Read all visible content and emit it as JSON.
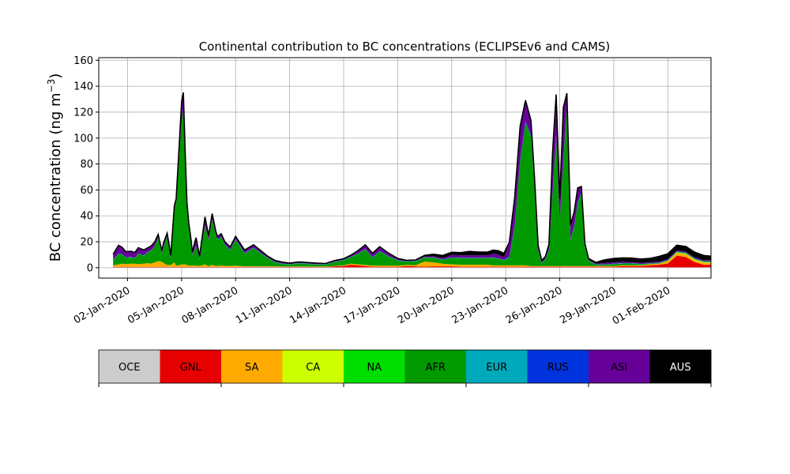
{
  "chart_data": {
    "type": "area",
    "title": "Continental contribution to BC concentrations (ECLIPSEv6 and CAMS)",
    "ylabel": "BC concentration (ng m",
    "ylabel_sup": "−3",
    "ylabel_close": ")",
    "xlabel": "",
    "ylim": [
      -8,
      162
    ],
    "xlim": [
      -1.6,
      32.4
    ],
    "grid": true,
    "stacked": true,
    "y_ticks": [
      0,
      20,
      40,
      60,
      80,
      100,
      120,
      140,
      160
    ],
    "x_ticks": [
      {
        "day": 0,
        "label": "02-Jan-2020"
      },
      {
        "day": 3,
        "label": "05-Jan-2020"
      },
      {
        "day": 6,
        "label": "08-Jan-2020"
      },
      {
        "day": 9,
        "label": "11-Jan-2020"
      },
      {
        "day": 12,
        "label": "14-Jan-2020"
      },
      {
        "day": 15,
        "label": "17-Jan-2020"
      },
      {
        "day": 18,
        "label": "20-Jan-2020"
      },
      {
        "day": 21,
        "label": "23-Jan-2020"
      },
      {
        "day": 24,
        "label": "26-Jan-2020"
      },
      {
        "day": 27,
        "label": "29-Jan-2020"
      },
      {
        "day": 30,
        "label": "01-Feb-2020"
      }
    ],
    "x_unit": "days after 02-Jan-2020",
    "x": [
      -0.8,
      -0.5,
      -0.3,
      -0.1,
      0.2,
      0.4,
      0.6,
      0.9,
      1.1,
      1.3,
      1.5,
      1.7,
      1.9,
      2.0,
      2.2,
      2.4,
      2.6,
      2.7,
      2.9,
      3.0,
      3.1,
      3.2,
      3.3,
      3.4,
      3.5,
      3.6,
      3.8,
      4.0,
      4.3,
      4.5,
      4.7,
      4.9,
      5.0,
      5.2,
      5.4,
      5.7,
      6.0,
      6.5,
      7.0,
      7.4,
      7.8,
      8.2,
      8.6,
      9.0,
      9.5,
      10.0,
      10.5,
      11.0,
      11.5,
      12.0,
      12.4,
      12.8,
      13.2,
      13.6,
      14.0,
      14.5,
      15.0,
      15.5,
      16.0,
      16.5,
      17.0,
      17.5,
      18.0,
      18.5,
      19.0,
      19.5,
      20.0,
      20.3,
      20.6,
      20.9,
      21.2,
      21.5,
      21.8,
      22.1,
      22.4,
      22.6,
      22.8,
      23.0,
      23.2,
      23.4,
      23.6,
      23.8,
      24.0,
      24.2,
      24.4,
      24.6,
      24.8,
      25.0,
      25.2,
      25.4,
      25.6,
      26.0,
      26.5,
      27.0,
      27.5,
      28.0,
      28.5,
      29.0,
      29.5,
      30.0,
      30.5,
      31.0,
      31.5,
      32.0,
      32.4
    ],
    "series": [
      {
        "name": "OCE",
        "color": "#cccccc",
        "values": [
          0.3,
          0.3,
          0.3,
          0.3,
          0.3,
          0.3,
          0.3,
          0.3,
          0.3,
          0.3,
          0.3,
          0.3,
          0.3,
          0.3,
          0.3,
          0.3,
          0.3,
          0.3,
          0.3,
          0.3,
          0.3,
          0.3,
          0.3,
          0.3,
          0.3,
          0.3,
          0.3,
          0.3,
          0.3,
          0.3,
          0.3,
          0.3,
          0.3,
          0.3,
          0.3,
          0.3,
          0.3,
          0.3,
          0.3,
          0.3,
          0.3,
          0.3,
          0.3,
          0.3,
          0.3,
          0.3,
          0.3,
          0.3,
          0.3,
          0.3,
          0.3,
          0.3,
          0.3,
          0.3,
          0.3,
          0.3,
          0.3,
          0.3,
          0.3,
          0.3,
          0.3,
          0.3,
          0.3,
          0.3,
          0.3,
          0.3,
          0.3,
          0.3,
          0.3,
          0.3,
          0.3,
          0.3,
          0.3,
          0.3,
          0.3,
          0.3,
          0.3,
          0.3,
          0.3,
          0.3,
          0.3,
          0.3,
          0.3,
          0.3,
          0.3,
          0.3,
          0.3,
          0.3,
          0.3,
          0.3,
          0.3,
          0.3,
          0.3,
          0.3,
          0.3,
          0.3,
          0.3,
          0.3,
          0.3,
          0.3,
          0.3,
          0.3,
          0.3,
          0.3,
          0.3
        ]
      },
      {
        "name": "GNL",
        "color": "#e60000",
        "values": [
          0.3,
          0.3,
          0.3,
          0.3,
          0.3,
          0.3,
          0.3,
          0.3,
          0.3,
          0.3,
          0.3,
          0.3,
          0.3,
          0.3,
          0.3,
          0.3,
          0.3,
          0.3,
          0.3,
          0.3,
          0.3,
          0.3,
          0.3,
          0.3,
          0.3,
          0.3,
          0.3,
          0.3,
          0.3,
          0.3,
          0.3,
          0.3,
          0.3,
          0.3,
          0.3,
          0.3,
          0.3,
          0.3,
          0.3,
          0.3,
          0.3,
          0.3,
          0.3,
          0.3,
          0.3,
          0.3,
          0.3,
          0.3,
          0.8,
          1.0,
          2.0,
          1.5,
          1.0,
          0.5,
          0.5,
          0.5,
          0.5,
          1.0,
          0.8,
          0.5,
          0.8,
          0.8,
          0.8,
          0.5,
          0.5,
          0.5,
          0.5,
          0.5,
          0.5,
          0.5,
          0.5,
          0.5,
          0.5,
          0.5,
          0.5,
          0.5,
          0.5,
          0.5,
          0.5,
          0.5,
          0.5,
          0.5,
          0.5,
          0.5,
          0.5,
          0.5,
          0.5,
          0.5,
          0.5,
          0.5,
          0.5,
          0.5,
          0.5,
          0.5,
          1.0,
          1.0,
          1.0,
          1.5,
          2.0,
          3.0,
          9.0,
          8.0,
          4.0,
          2.0,
          2.0
        ]
      },
      {
        "name": "SA",
        "color": "#ffaa00",
        "values": [
          1.2,
          2.0,
          2.5,
          2.2,
          2.5,
          2.5,
          2.2,
          2.5,
          3.0,
          2.5,
          3.5,
          4.5,
          4.0,
          3.0,
          1.5,
          1.5,
          3.5,
          1.0,
          1.5,
          2.0,
          2.0,
          2.0,
          1.5,
          1.0,
          1.0,
          1.0,
          1.0,
          0.8,
          2.0,
          0.5,
          1.5,
          0.8,
          0.8,
          1.0,
          0.8,
          0.8,
          1.0,
          0.5,
          0.5,
          0.5,
          0.5,
          0.5,
          0.3,
          0.3,
          0.3,
          0.3,
          0.3,
          0.3,
          0.3,
          0.5,
          0.8,
          0.8,
          0.8,
          0.8,
          0.8,
          0.8,
          0.8,
          0.8,
          0.8,
          4.0,
          3.0,
          2.0,
          1.5,
          1.5,
          1.5,
          1.5,
          1.5,
          1.0,
          1.0,
          1.0,
          1.0,
          1.0,
          1.0,
          1.0,
          0.5,
          0.5,
          0.5,
          0.5,
          0.5,
          0.5,
          0.5,
          0.5,
          0.5,
          0.5,
          0.5,
          0.5,
          0.5,
          0.5,
          0.5,
          0.5,
          0.5,
          0.5,
          0.5,
          0.5,
          0.5,
          0.5,
          0.5,
          0.8,
          0.8,
          1.5,
          2.0,
          2.0,
          1.5,
          1.5,
          1.5
        ]
      },
      {
        "name": "CA",
        "color": "#ccff00",
        "values": [
          0,
          0,
          0,
          0,
          0,
          0,
          0,
          0,
          0,
          0,
          0,
          0,
          0,
          0,
          0,
          0,
          0,
          0,
          0,
          0,
          0,
          0,
          0,
          0,
          0,
          0,
          0,
          0,
          0,
          0,
          0,
          0,
          0,
          0,
          0,
          0,
          0,
          0,
          0,
          0,
          0,
          0,
          0,
          0,
          0,
          0,
          0,
          0,
          0,
          0,
          0,
          0,
          0,
          0,
          0,
          0,
          0,
          0,
          0,
          0,
          0,
          0,
          0,
          0,
          0,
          0,
          0,
          0,
          0,
          0,
          0,
          0,
          0,
          0,
          0,
          0,
          0,
          0,
          0,
          0,
          0,
          0,
          0,
          0,
          0,
          0,
          0,
          0,
          0,
          0,
          0,
          0,
          0,
          0,
          0,
          0,
          0,
          0,
          0,
          0.3,
          0.5,
          0.5,
          0.5,
          0.5,
          0.5
        ]
      },
      {
        "name": "NA",
        "color": "#00dd00",
        "values": [
          0,
          0,
          0,
          0,
          0,
          0,
          0,
          0,
          0,
          0,
          0,
          0,
          0,
          0,
          0,
          0,
          0,
          0,
          0,
          0,
          0,
          0,
          0,
          0,
          0,
          0,
          0,
          0,
          0,
          0,
          0,
          0,
          0,
          0,
          0,
          0,
          0,
          0,
          0,
          0,
          0,
          0,
          0,
          0,
          0,
          0,
          0,
          0,
          0,
          0,
          0,
          0,
          0,
          0,
          0,
          0,
          0,
          0,
          0,
          0,
          0,
          0,
          0,
          0,
          0,
          0,
          0,
          0,
          0,
          0,
          0,
          0,
          0,
          0,
          0,
          0,
          0,
          0,
          0,
          0,
          0,
          0,
          0,
          0,
          0,
          0,
          0,
          0,
          0,
          0,
          0,
          0,
          0,
          0,
          0,
          0,
          0,
          0,
          0,
          0,
          0,
          0,
          0,
          0,
          0
        ]
      },
      {
        "name": "AFR",
        "color": "#009900",
        "values": [
          4.0,
          8.0,
          7.0,
          5.0,
          5.0,
          4.0,
          8.0,
          6.0,
          8.0,
          10.0,
          12.0,
          18.0,
          6.0,
          12.0,
          22.0,
          5.0,
          40.0,
          48.0,
          90.0,
          110.0,
          120.0,
          80.0,
          45.0,
          30.0,
          20.0,
          8.0,
          15.0,
          5.0,
          30.0,
          20.0,
          35.0,
          24.0,
          20.0,
          22.0,
          16.0,
          12.0,
          20.0,
          10.0,
          14.0,
          10.0,
          6.0,
          3.0,
          2.0,
          1.5,
          2.5,
          2.0,
          1.5,
          1.5,
          3.0,
          4.0,
          5.0,
          8.0,
          12.0,
          6.0,
          11.0,
          7.0,
          4.0,
          2.5,
          3.0,
          3.0,
          3.5,
          3.0,
          5.0,
          5.0,
          5.0,
          5.0,
          5.0,
          6.0,
          5.0,
          4.0,
          6.0,
          30.0,
          80.0,
          110.0,
          100.0,
          60.0,
          12.0,
          2.0,
          5.0,
          12.0,
          55.0,
          100.0,
          35.0,
          80.0,
          125.0,
          20.0,
          30.0,
          48.0,
          56.0,
          15.0,
          4.0,
          1.0,
          1.0,
          1.5,
          1.5,
          1.5,
          0.8,
          0.5,
          0.5,
          0.5,
          0.5,
          0.5,
          0.5,
          0.5,
          0.5
        ]
      },
      {
        "name": "EUR",
        "color": "#00aabb",
        "values": [
          0.3,
          0.3,
          0.3,
          0.3,
          0.3,
          0.3,
          0.3,
          0.3,
          0.3,
          0.3,
          0.3,
          0.3,
          0.3,
          0.3,
          0.3,
          0.3,
          0.3,
          0.3,
          0.3,
          0.3,
          0.3,
          0.3,
          0.3,
          0.3,
          0.3,
          0.3,
          0.3,
          0.3,
          0.3,
          0.3,
          0.3,
          0.3,
          0.3,
          0.3,
          0.3,
          0.3,
          0.3,
          0.3,
          0.3,
          0.3,
          0.3,
          0.3,
          0.3,
          0.3,
          0.3,
          0.3,
          0.3,
          0.3,
          0.3,
          0.3,
          0.3,
          0.3,
          0.3,
          0.3,
          0.3,
          0.3,
          0.3,
          0.3,
          0.3,
          0.3,
          0.3,
          0.3,
          0.3,
          0.3,
          0.3,
          0.3,
          0.3,
          0.3,
          0.3,
          0.3,
          0.3,
          0.3,
          0.3,
          0.3,
          0.3,
          0.3,
          0.3,
          0.3,
          0.3,
          0.3,
          0.3,
          0.3,
          0.3,
          0.3,
          0.3,
          0.3,
          0.3,
          0.3,
          0.3,
          0.3,
          0.3,
          0.3,
          0.3,
          0.3,
          0.3,
          0.3,
          0.3,
          0.3,
          0.3,
          0.3,
          0.3,
          0.3,
          0.3,
          0.3,
          0.3
        ]
      },
      {
        "name": "RUS",
        "color": "#0033dd",
        "values": [
          0,
          0,
          0,
          0,
          0,
          0,
          0,
          0,
          0,
          0,
          0,
          0,
          0,
          0,
          0,
          0,
          0,
          0,
          0,
          0,
          0,
          0,
          0,
          0,
          0,
          0,
          0,
          0,
          0,
          0,
          0,
          0,
          0,
          0,
          0,
          0,
          0,
          0,
          0,
          0,
          0,
          0,
          0,
          0,
          0,
          0,
          0,
          0,
          0,
          0,
          0,
          0,
          0,
          0,
          0,
          0,
          0,
          0,
          0,
          0,
          0,
          0,
          0,
          0,
          0,
          0,
          0,
          0,
          0,
          0,
          0.5,
          1.0,
          1.0,
          1.0,
          1.0,
          1.0,
          0.5,
          0,
          0,
          0.5,
          1.0,
          1.0,
          0.5,
          1.0,
          1.0,
          0.5,
          0.5,
          1.0,
          1.0,
          0.5,
          0,
          0,
          0,
          0,
          0,
          0,
          0,
          0,
          0,
          0,
          0,
          0,
          0,
          0,
          0
        ]
      },
      {
        "name": "ASI",
        "color": "#660099",
        "values": [
          4.0,
          6.0,
          5.0,
          4.0,
          4.0,
          4.0,
          4.0,
          4.0,
          3.0,
          3.0,
          3.0,
          2.0,
          2.0,
          3.0,
          2.0,
          2.0,
          3.0,
          3.0,
          10.0,
          15.0,
          12.0,
          6.0,
          2.0,
          2.0,
          2.0,
          2.0,
          6.0,
          2.0,
          6.0,
          3.0,
          4.0,
          2.0,
          2.0,
          2.0,
          2.0,
          2.0,
          2.0,
          2.0,
          2.0,
          1.5,
          1.0,
          0.8,
          0.8,
          0.5,
          0.5,
          0.5,
          0.5,
          0.3,
          0.5,
          0.5,
          1.0,
          2.0,
          3.0,
          3.0,
          3.0,
          2.0,
          1.0,
          0.5,
          0.5,
          0.5,
          1.0,
          1.0,
          2.0,
          2.0,
          2.0,
          2.0,
          2.0,
          3.0,
          3.0,
          2.0,
          10.0,
          20.0,
          25.0,
          15.0,
          10.0,
          6.0,
          2.0,
          1.0,
          1.0,
          3.0,
          30.0,
          30.0,
          15.0,
          40.0,
          6.0,
          10.0,
          10.0,
          10.0,
          3.0,
          0.5,
          0.5,
          0.5,
          1.0,
          1.0,
          1.0,
          0.8,
          0.8,
          0.8,
          0.8,
          0.8,
          0.8,
          0.8,
          0.8,
          0.8,
          0.8
        ]
      },
      {
        "name": "AUS",
        "color": "#000000",
        "values": [
          0.3,
          0.3,
          0.3,
          0.3,
          0.3,
          0.3,
          0.3,
          0.3,
          0.3,
          0.3,
          0.3,
          0.3,
          0.3,
          0.3,
          0.3,
          0.3,
          0.3,
          0.3,
          0.3,
          0.3,
          0.3,
          0.3,
          0.3,
          0.3,
          0.3,
          0.3,
          0.3,
          0.3,
          0.3,
          0.3,
          0.3,
          0.3,
          0.3,
          0.3,
          0.3,
          0.3,
          0.3,
          0.3,
          0.3,
          0.3,
          0.3,
          0.3,
          0.3,
          0.3,
          0.3,
          0.3,
          0.3,
          0.3,
          0.3,
          0.3,
          0.3,
          0.3,
          0.3,
          0.3,
          0.3,
          0.3,
          0.3,
          0.3,
          0.3,
          1.0,
          1.5,
          2.0,
          2.0,
          2.0,
          3.0,
          2.5,
          2.5,
          2.5,
          3.0,
          3.0,
          1.0,
          1.0,
          1.0,
          1.0,
          1.0,
          1.0,
          1.0,
          1.0,
          1.0,
          1.0,
          1.0,
          1.0,
          1.0,
          1.0,
          1.0,
          1.0,
          1.0,
          1.0,
          1.0,
          1.0,
          1.0,
          1.0,
          2.5,
          3.0,
          3.0,
          3.0,
          3.0,
          3.0,
          4.0,
          4.0,
          4.0,
          4.0,
          4.0,
          3.5,
          3.0
        ]
      }
    ],
    "legend": [
      "OCE",
      "GNL",
      "SA",
      "CA",
      "NA",
      "AFR",
      "EUR",
      "RUS",
      "ASI",
      "AUS"
    ],
    "legend_placement": "bottom colorbar"
  }
}
